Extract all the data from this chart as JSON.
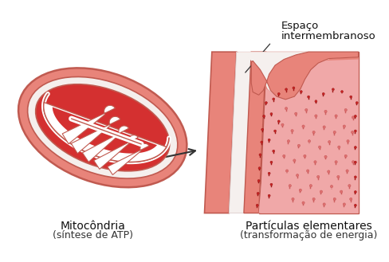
{
  "bg_color": "#ffffff",
  "label_mitocondria_line1": "Mitocôndria",
  "label_mitocondria_line2": "(síntese de ATP)",
  "label_particulas_line1": "Partículas elementares",
  "label_particulas_line2": "(transformação de energia)",
  "label_espaco_line1": "Espaço",
  "label_espaco_line2": "intermembranoso",
  "outer_color": "#e8847a",
  "outer_edge": "#c05a50",
  "white_band_color": "#f8f0ee",
  "inner_red": "#d43030",
  "crista_white": "#ffffff",
  "crista_edge": "#c05a50",
  "membrane_outer_color": "#e8847a",
  "membrane_pink_color": "#f0a0a0",
  "particle_color_dark": "#cc2222",
  "particle_color_light": "#e07070",
  "arrow_color": "#333333",
  "label_font_size": 9.5,
  "annotation_font_size": 9.5
}
